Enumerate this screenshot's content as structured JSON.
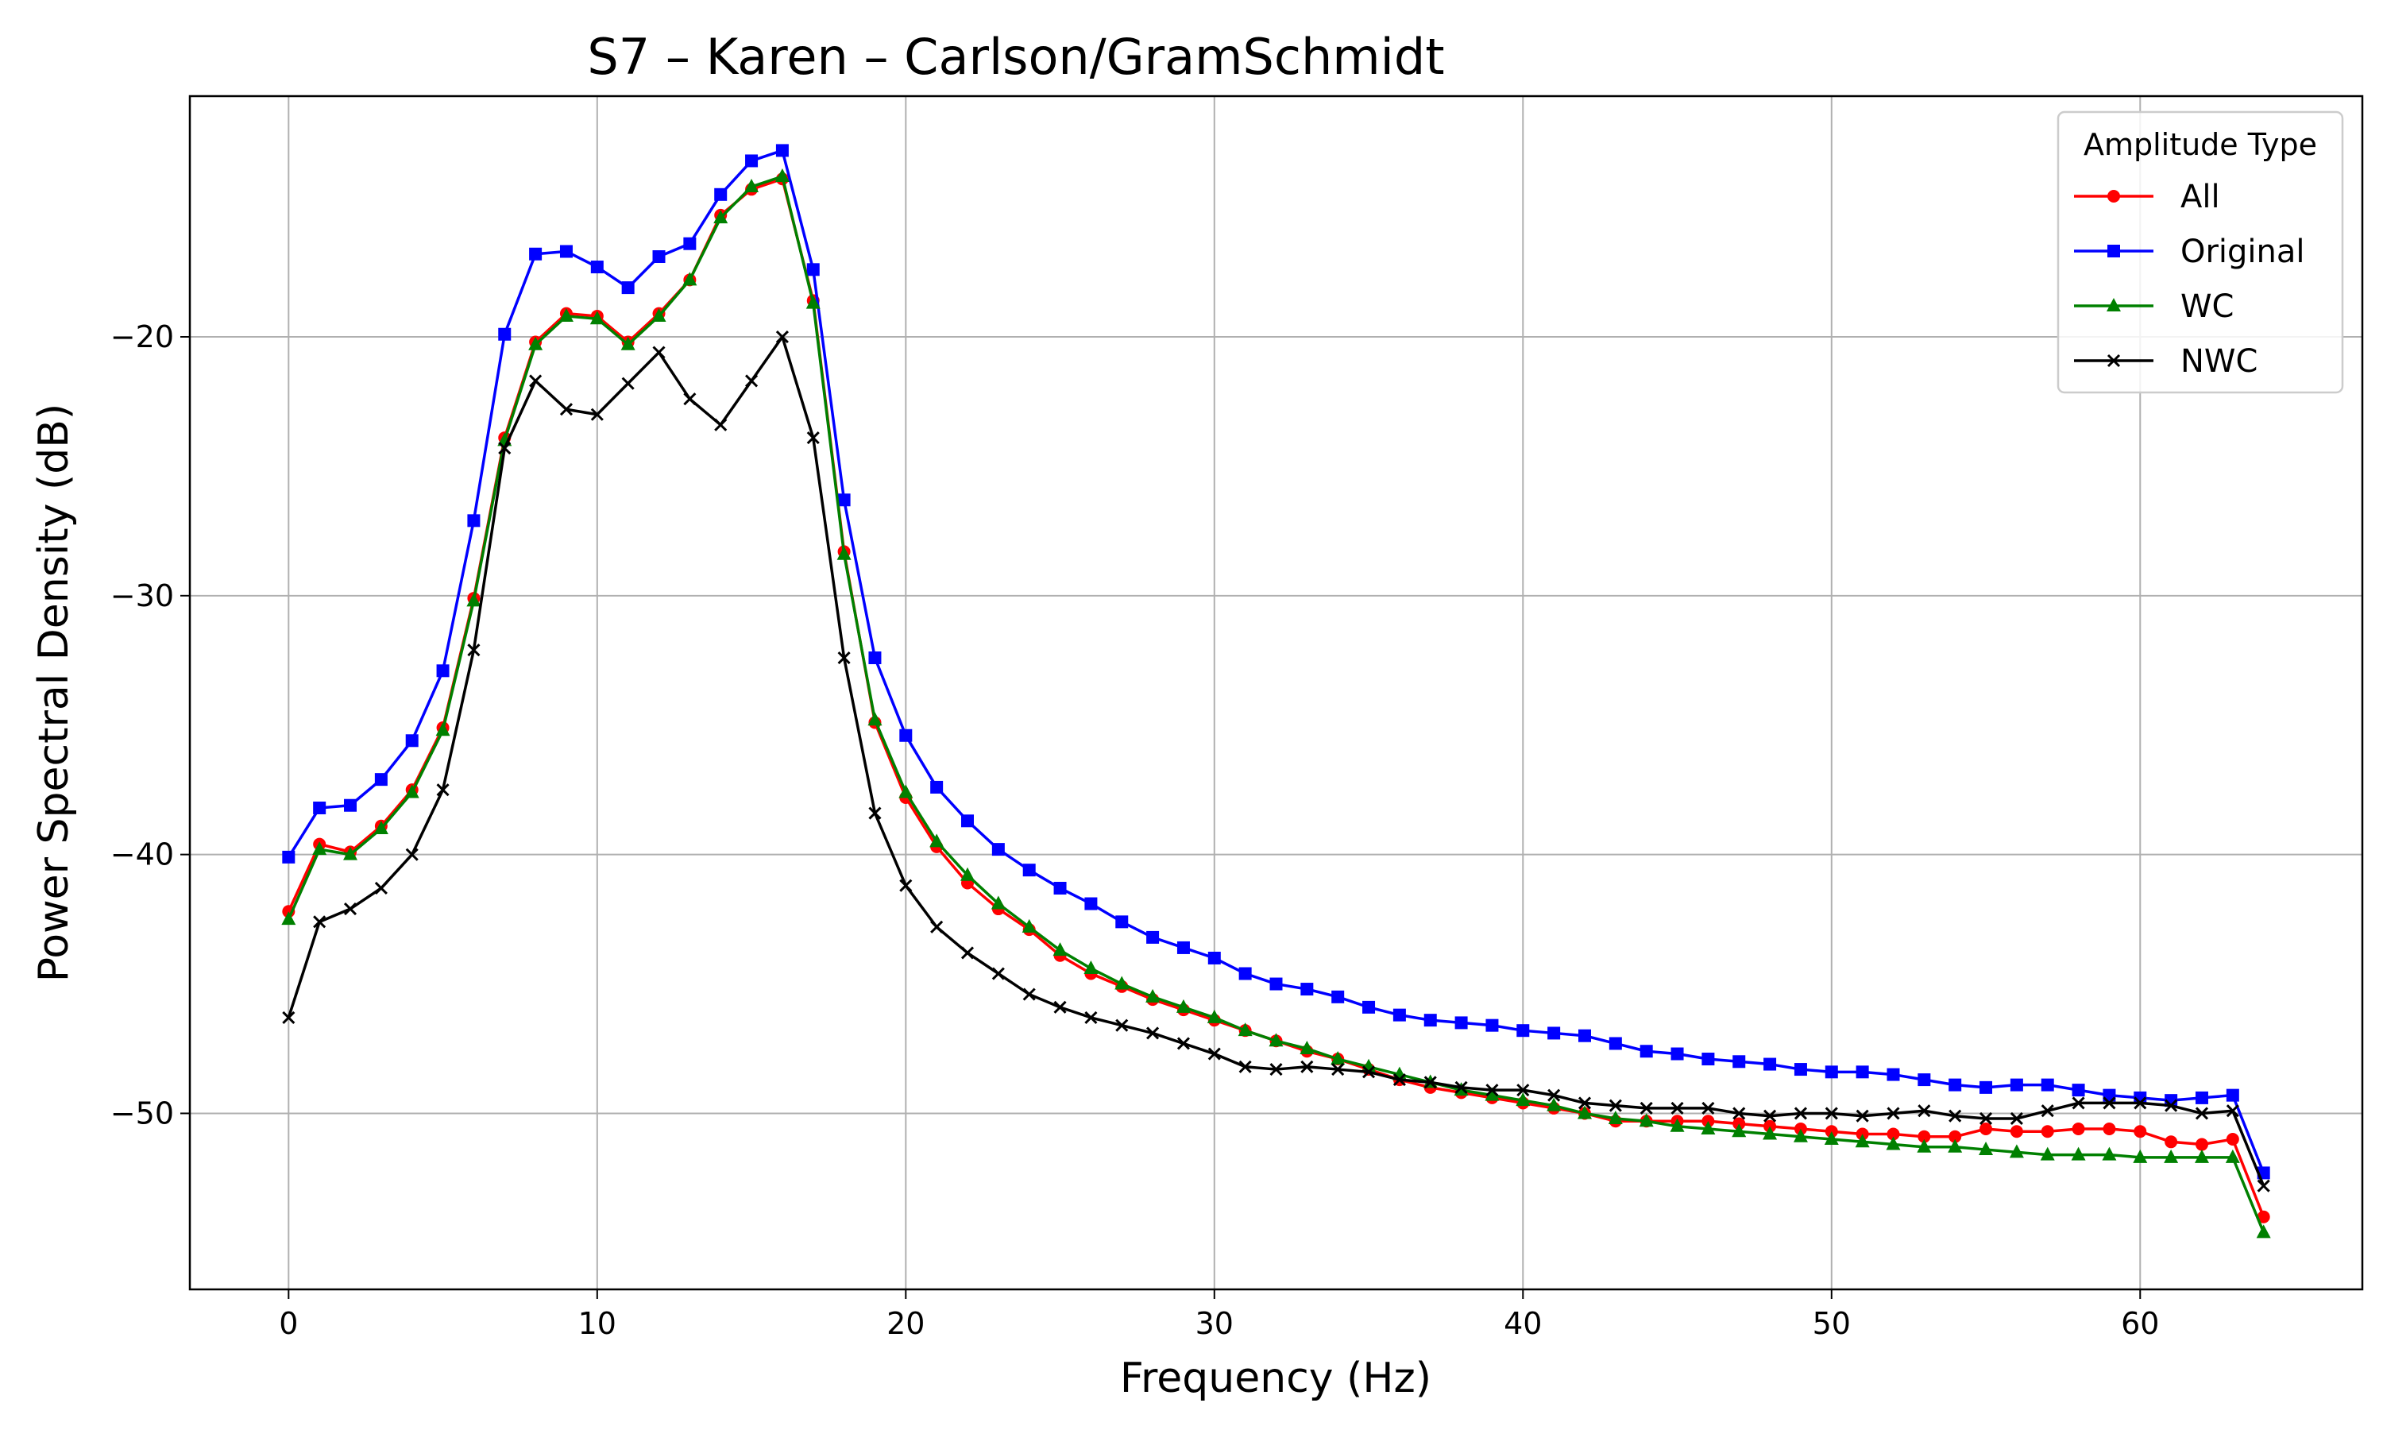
{
  "chart_data": {
    "type": "line",
    "title": "S7 – Karen – Carlson/GramSchmidt",
    "xlabel": "Frequency (Hz)",
    "ylabel": "Power Spectral Density (dB)",
    "xlim": [
      -3.2,
      67.2
    ],
    "ylim": [
      -56.8,
      -10.7
    ],
    "xticks": [
      0,
      10,
      20,
      30,
      40,
      50,
      60
    ],
    "xtick_labels": [
      "0",
      "10",
      "20",
      "30",
      "40",
      "50",
      "60"
    ],
    "yticks": [
      -20,
      -30,
      -40,
      -50
    ],
    "ytick_labels": [
      "−20",
      "−30",
      "−40",
      "−50"
    ],
    "grid": true,
    "legend": {
      "title": "Amplitude Type",
      "position": "top-right"
    },
    "x": [
      0,
      1,
      2,
      3,
      4,
      5,
      6,
      7,
      8,
      9,
      10,
      11,
      12,
      13,
      14,
      15,
      16,
      17,
      18,
      19,
      20,
      21,
      22,
      23,
      24,
      25,
      26,
      27,
      28,
      29,
      30,
      31,
      32,
      33,
      34,
      35,
      36,
      37,
      38,
      39,
      40,
      41,
      42,
      43,
      44,
      45,
      46,
      47,
      48,
      49,
      50,
      51,
      52,
      53,
      54,
      55,
      56,
      57,
      58,
      59,
      60,
      61,
      62,
      63,
      64
    ],
    "series": [
      {
        "name": "All",
        "color": "#ff0000",
        "marker": "circle",
        "values": [
          -42.2,
          -39.6,
          -39.9,
          -38.9,
          -37.5,
          -35.1,
          -30.1,
          -23.9,
          -20.2,
          -19.1,
          -19.2,
          -20.2,
          -19.1,
          -17.8,
          -15.3,
          -14.3,
          -13.9,
          -18.6,
          -28.3,
          -34.9,
          -37.8,
          -39.7,
          -41.1,
          -42.1,
          -42.9,
          -43.9,
          -44.6,
          -45.1,
          -45.6,
          -46.0,
          -46.4,
          -46.8,
          -47.2,
          -47.6,
          -47.9,
          -48.3,
          -48.7,
          -49.0,
          -49.2,
          -49.4,
          -49.6,
          -49.8,
          -50.0,
          -50.3,
          -50.3,
          -50.3,
          -50.3,
          -50.4,
          -50.5,
          -50.6,
          -50.7,
          -50.8,
          -50.8,
          -50.9,
          -50.9,
          -50.6,
          -50.7,
          -50.7,
          -50.6,
          -50.6,
          -50.7,
          -51.1,
          -51.2,
          -51.0,
          -54.0
        ]
      },
      {
        "name": "Original",
        "color": "#0000ff",
        "marker": "square",
        "values": [
          -40.1,
          -38.2,
          -38.1,
          -37.1,
          -35.6,
          -32.9,
          -27.1,
          -19.9,
          -16.8,
          -16.7,
          -17.3,
          -18.1,
          -16.9,
          -16.4,
          -14.5,
          -13.2,
          -12.8,
          -17.4,
          -26.3,
          -32.4,
          -35.4,
          -37.4,
          -38.7,
          -39.8,
          -40.6,
          -41.3,
          -41.9,
          -42.6,
          -43.2,
          -43.6,
          -44.0,
          -44.6,
          -45.0,
          -45.2,
          -45.5,
          -45.9,
          -46.2,
          -46.4,
          -46.5,
          -46.6,
          -46.8,
          -46.9,
          -47.0,
          -47.3,
          -47.6,
          -47.7,
          -47.9,
          -48.0,
          -48.1,
          -48.3,
          -48.4,
          -48.4,
          -48.5,
          -48.7,
          -48.9,
          -49.0,
          -48.9,
          -48.9,
          -49.1,
          -49.3,
          -49.4,
          -49.5,
          -49.4,
          -49.3,
          -52.3
        ]
      },
      {
        "name": "WC",
        "color": "#008000",
        "marker": "triangle",
        "values": [
          -42.5,
          -39.8,
          -40.0,
          -39.0,
          -37.6,
          -35.2,
          -30.2,
          -24.0,
          -20.3,
          -19.2,
          -19.3,
          -20.3,
          -19.2,
          -17.8,
          -15.4,
          -14.2,
          -13.8,
          -18.7,
          -28.4,
          -34.8,
          -37.6,
          -39.5,
          -40.8,
          -41.9,
          -42.8,
          -43.7,
          -44.4,
          -45.0,
          -45.5,
          -45.9,
          -46.3,
          -46.8,
          -47.2,
          -47.5,
          -47.9,
          -48.2,
          -48.5,
          -48.8,
          -49.1,
          -49.3,
          -49.5,
          -49.7,
          -50.0,
          -50.2,
          -50.3,
          -50.5,
          -50.6,
          -50.7,
          -50.8,
          -50.9,
          -51.0,
          -51.1,
          -51.2,
          -51.3,
          -51.3,
          -51.4,
          -51.5,
          -51.6,
          -51.6,
          -51.6,
          -51.7,
          -51.7,
          -51.7,
          -51.7,
          -54.6
        ]
      },
      {
        "name": "NWC",
        "color": "#000000",
        "marker": "x",
        "values": [
          -46.3,
          -42.6,
          -42.1,
          -41.3,
          -40.0,
          -37.5,
          -32.1,
          -24.3,
          -21.7,
          -22.8,
          -23.0,
          -21.8,
          -20.6,
          -22.4,
          -23.4,
          -21.7,
          -20.0,
          -23.9,
          -32.4,
          -38.4,
          -41.2,
          -42.8,
          -43.8,
          -44.6,
          -45.4,
          -45.9,
          -46.3,
          -46.6,
          -46.9,
          -47.3,
          -47.7,
          -48.2,
          -48.3,
          -48.2,
          -48.3,
          -48.4,
          -48.7,
          -48.8,
          -49.0,
          -49.1,
          -49.1,
          -49.3,
          -49.6,
          -49.7,
          -49.8,
          -49.8,
          -49.8,
          -50.0,
          -50.1,
          -50.0,
          -50.0,
          -50.1,
          -50.0,
          -49.9,
          -50.1,
          -50.2,
          -50.2,
          -49.9,
          -49.6,
          -49.6,
          -49.6,
          -49.7,
          -50.0,
          -49.9,
          -52.8
        ]
      }
    ]
  }
}
